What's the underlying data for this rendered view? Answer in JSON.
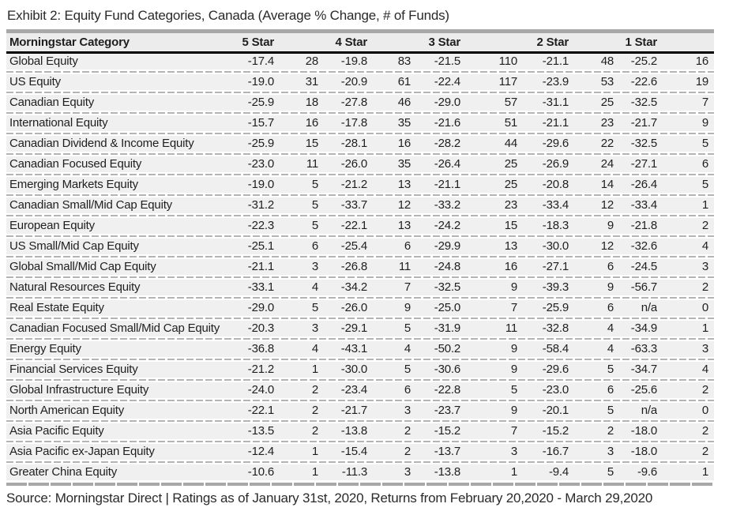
{
  "title": "Exhibit 2: Equity Fund Categories, Canada (Average % Change, # of Funds)",
  "source_line": "Source: Morningstar Direct  |  Ratings as of January 31st, 2020, Returns from February 20,2020 - March 29,2020",
  "colors": {
    "row_background": "#f0f0f0",
    "header_background": "#ececec",
    "divider_gray": "#a8a8a8",
    "dash_gray": "#b4b4b4",
    "header_rule": "#000000",
    "text": "#1f1f1f"
  },
  "table": {
    "category_header": "Morningstar Category",
    "star_headers": [
      "5 Star",
      "4 Star",
      "3 Star",
      "2 Star",
      "1 Star"
    ],
    "rows": [
      [
        "Global Equity",
        "-17.4",
        "28",
        "-19.8",
        "83",
        "-21.5",
        "110",
        "-21.1",
        "48",
        "-25.2",
        "16"
      ],
      [
        "US Equity",
        "-19.0",
        "31",
        "-20.9",
        "61",
        "-22.4",
        "117",
        "-23.9",
        "53",
        "-22.6",
        "19"
      ],
      [
        "Canadian Equity",
        "-25.9",
        "18",
        "-27.8",
        "46",
        "-29.0",
        "57",
        "-31.1",
        "25",
        "-32.5",
        "7"
      ],
      [
        "International Equity",
        "-15.7",
        "16",
        "-17.8",
        "35",
        "-21.6",
        "51",
        "-21.1",
        "23",
        "-21.7",
        "9"
      ],
      [
        "Canadian Dividend & Income Equity",
        "-25.9",
        "15",
        "-28.1",
        "16",
        "-28.2",
        "44",
        "-29.6",
        "22",
        "-32.5",
        "5"
      ],
      [
        "Canadian Focused Equity",
        "-23.0",
        "11",
        "-26.0",
        "35",
        "-26.4",
        "25",
        "-26.9",
        "24",
        "-27.1",
        "6"
      ],
      [
        "Emerging Markets Equity",
        "-19.0",
        "5",
        "-21.2",
        "13",
        "-21.1",
        "25",
        "-20.8",
        "14",
        "-26.4",
        "5"
      ],
      [
        "Canadian Small/Mid Cap Equity",
        "-31.2",
        "5",
        "-33.7",
        "12",
        "-33.2",
        "23",
        "-33.4",
        "12",
        "-33.4",
        "1"
      ],
      [
        "European Equity",
        "-22.3",
        "5",
        "-22.1",
        "13",
        "-24.2",
        "15",
        "-18.3",
        "9",
        "-21.8",
        "2"
      ],
      [
        "US Small/Mid Cap Equity",
        "-25.1",
        "6",
        "-25.4",
        "6",
        "-29.9",
        "13",
        "-30.0",
        "12",
        "-32.6",
        "4"
      ],
      [
        "Global Small/Mid Cap Equity",
        "-21.1",
        "3",
        "-26.8",
        "11",
        "-24.8",
        "16",
        "-27.1",
        "6",
        "-24.5",
        "3"
      ],
      [
        "Natural Resources Equity",
        "-33.1",
        "4",
        "-34.2",
        "7",
        "-32.5",
        "9",
        "-39.3",
        "9",
        "-56.7",
        "2"
      ],
      [
        "Real Estate Equity",
        "-29.0",
        "5",
        "-26.0",
        "9",
        "-25.0",
        "7",
        "-25.9",
        "6",
        "n/a",
        "0"
      ],
      [
        "Canadian Focused Small/Mid Cap Equity",
        "-20.3",
        "3",
        "-29.1",
        "5",
        "-31.9",
        "11",
        "-32.8",
        "4",
        "-34.9",
        "1"
      ],
      [
        "Energy Equity",
        "-36.8",
        "4",
        "-43.1",
        "4",
        "-50.2",
        "9",
        "-58.4",
        "4",
        "-63.3",
        "3"
      ],
      [
        "Financial Services Equity",
        "-21.2",
        "1",
        "-30.0",
        "5",
        "-30.6",
        "9",
        "-29.6",
        "5",
        "-34.7",
        "4"
      ],
      [
        "Global Infrastructure Equity",
        "-24.0",
        "2",
        "-23.4",
        "6",
        "-22.8",
        "5",
        "-23.0",
        "6",
        "-25.6",
        "2"
      ],
      [
        "North American Equity",
        "-22.1",
        "2",
        "-21.7",
        "3",
        "-23.7",
        "9",
        "-20.1",
        "5",
        "n/a",
        "0"
      ],
      [
        "Asia Pacific Equity",
        "-13.5",
        "2",
        "-13.8",
        "2",
        "-15.2",
        "7",
        "-15.2",
        "2",
        "-18.0",
        "2"
      ],
      [
        "Asia Pacific ex-Japan Equity",
        "-12.4",
        "1",
        "-15.4",
        "2",
        "-13.7",
        "3",
        "-16.7",
        "3",
        "-18.0",
        "2"
      ],
      [
        "Greater China Equity",
        "-10.6",
        "1",
        "-11.3",
        "3",
        "-13.8",
        "1",
        "-9.4",
        "5",
        "-9.6",
        "1"
      ]
    ]
  },
  "chart_data": {
    "type": "table",
    "title": "Exhibit 2: Equity Fund Categories, Canada (Average % Change, # of Funds)",
    "columns": [
      "Morningstar Category",
      "5 Star Avg % Change",
      "5 Star # of Funds",
      "4 Star Avg % Change",
      "4 Star # of Funds",
      "3 Star Avg % Change",
      "3 Star # of Funds",
      "2 Star Avg % Change",
      "2 Star # of Funds",
      "1 Star Avg % Change",
      "1 Star # of Funds"
    ],
    "rows": [
      [
        "Global Equity",
        -17.4,
        28,
        -19.8,
        83,
        -21.5,
        110,
        -21.1,
        48,
        -25.2,
        16
      ],
      [
        "US Equity",
        -19.0,
        31,
        -20.9,
        61,
        -22.4,
        117,
        -23.9,
        53,
        -22.6,
        19
      ],
      [
        "Canadian Equity",
        -25.9,
        18,
        -27.8,
        46,
        -29.0,
        57,
        -31.1,
        25,
        -32.5,
        7
      ],
      [
        "International Equity",
        -15.7,
        16,
        -17.8,
        35,
        -21.6,
        51,
        -21.1,
        23,
        -21.7,
        9
      ],
      [
        "Canadian Dividend & Income Equity",
        -25.9,
        15,
        -28.1,
        16,
        -28.2,
        44,
        -29.6,
        22,
        -32.5,
        5
      ],
      [
        "Canadian Focused Equity",
        -23.0,
        11,
        -26.0,
        35,
        -26.4,
        25,
        -26.9,
        24,
        -27.1,
        6
      ],
      [
        "Emerging Markets Equity",
        -19.0,
        5,
        -21.2,
        13,
        -21.1,
        25,
        -20.8,
        14,
        -26.4,
        5
      ],
      [
        "Canadian Small/Mid Cap Equity",
        -31.2,
        5,
        -33.7,
        12,
        -33.2,
        23,
        -33.4,
        12,
        -33.4,
        1
      ],
      [
        "European Equity",
        -22.3,
        5,
        -22.1,
        13,
        -24.2,
        15,
        -18.3,
        9,
        -21.8,
        2
      ],
      [
        "US Small/Mid Cap Equity",
        -25.1,
        6,
        -25.4,
        6,
        -29.9,
        13,
        -30.0,
        12,
        -32.6,
        4
      ],
      [
        "Global Small/Mid Cap Equity",
        -21.1,
        3,
        -26.8,
        11,
        -24.8,
        16,
        -27.1,
        6,
        -24.5,
        3
      ],
      [
        "Natural Resources Equity",
        -33.1,
        4,
        -34.2,
        7,
        -32.5,
        9,
        -39.3,
        9,
        -56.7,
        2
      ],
      [
        "Real Estate Equity",
        -29.0,
        5,
        -26.0,
        9,
        -25.0,
        7,
        -25.9,
        6,
        "n/a",
        0
      ],
      [
        "Canadian Focused Small/Mid Cap Equity",
        -20.3,
        3,
        -29.1,
        5,
        -31.9,
        11,
        -32.8,
        4,
        -34.9,
        1
      ],
      [
        "Energy Equity",
        -36.8,
        4,
        -43.1,
        4,
        -50.2,
        9,
        -58.4,
        4,
        -63.3,
        3
      ],
      [
        "Financial Services Equity",
        -21.2,
        1,
        -30.0,
        5,
        -30.6,
        9,
        -29.6,
        5,
        -34.7,
        4
      ],
      [
        "Global Infrastructure Equity",
        -24.0,
        2,
        -23.4,
        6,
        -22.8,
        5,
        -23.0,
        6,
        -25.6,
        2
      ],
      [
        "North American Equity",
        -22.1,
        2,
        -21.7,
        3,
        -23.7,
        9,
        -20.1,
        5,
        "n/a",
        0
      ],
      [
        "Asia Pacific Equity",
        -13.5,
        2,
        -13.8,
        2,
        -15.2,
        7,
        -15.2,
        2,
        -18.0,
        2
      ],
      [
        "Asia Pacific ex-Japan Equity",
        -12.4,
        1,
        -15.4,
        2,
        -13.7,
        3,
        -16.7,
        3,
        -18.0,
        2
      ],
      [
        "Greater China Equity",
        -10.6,
        1,
        -11.3,
        3,
        -13.8,
        1,
        -9.4,
        5,
        -9.6,
        1
      ]
    ],
    "source": "Morningstar Direct",
    "notes": "Ratings as of January 31st, 2020, Returns from February 20,2020 - March 29,2020"
  }
}
